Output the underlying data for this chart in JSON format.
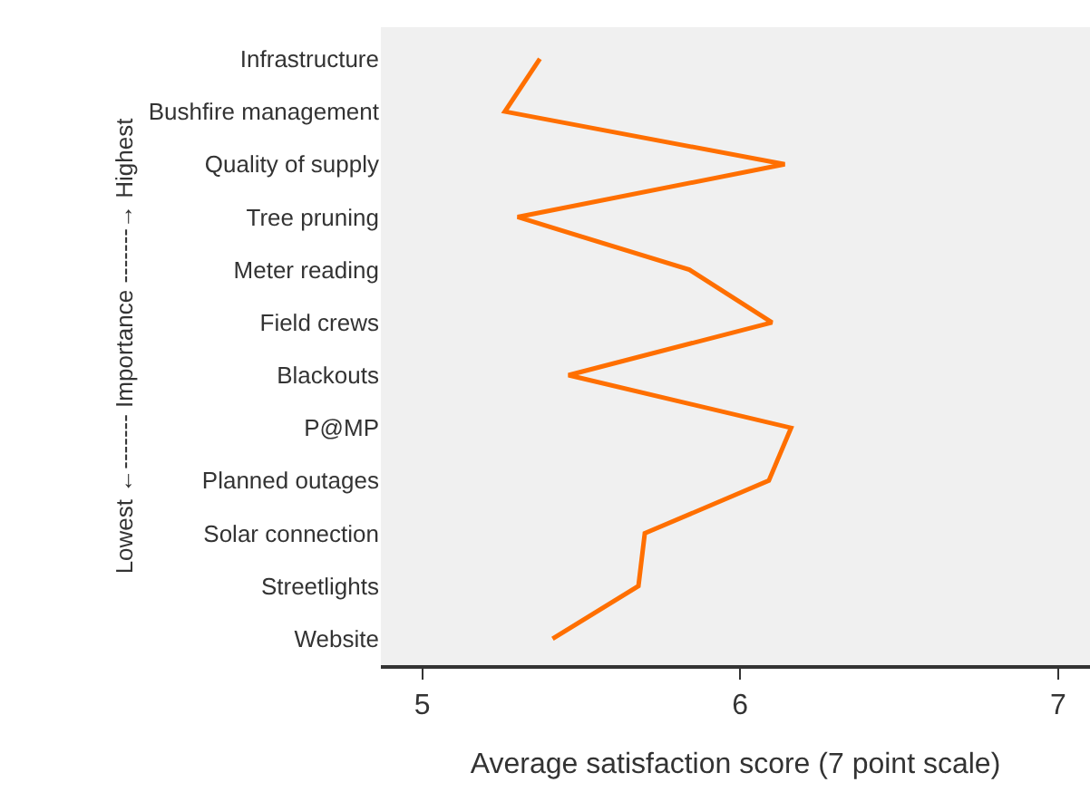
{
  "chart_data": {
    "type": "line",
    "orientation": "horizontal",
    "xlabel": "Average satisfaction score (7 point scale)",
    "ylabel": "Lowest ←------- Importance -------→ Highest",
    "categories": [
      "Infrastructure",
      "Bushfire management",
      "Quality of supply",
      "Tree pruning",
      "Meter reading",
      "Field crews",
      "Blackouts",
      "P@MP",
      "Planned outages",
      "Solar connection",
      "Streetlights",
      "Website"
    ],
    "series": [
      {
        "color": "#ff6f00",
        "values": [
          5.37,
          5.26,
          6.14,
          5.3,
          5.84,
          6.1,
          5.46,
          6.16,
          6.09,
          5.7,
          5.68,
          5.41
        ]
      }
    ],
    "xlim": [
      4.87,
      7.1
    ],
    "xticks": [
      5,
      6,
      7
    ],
    "marker": "none",
    "line_style": "solid"
  }
}
